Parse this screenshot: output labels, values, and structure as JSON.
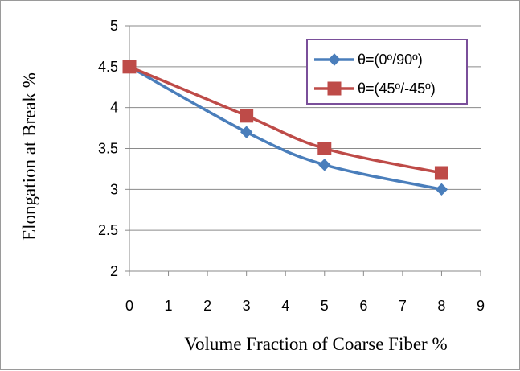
{
  "chart_data": {
    "type": "line",
    "title": "",
    "xlabel": "Volume Fraction of  Coarse Fiber %",
    "ylabel": "Elongation at Break %",
    "xlim": [
      0,
      9
    ],
    "ylim": [
      2,
      5
    ],
    "x_ticks": [
      "0",
      "1",
      "2",
      "3",
      "4",
      "5",
      "6",
      "7",
      "8",
      "9"
    ],
    "y_ticks": [
      "2",
      "2.5",
      "3",
      "3.5",
      "4",
      "4.5",
      "5"
    ],
    "grid": "horizontal",
    "legend_position": "top-right",
    "series": [
      {
        "name": "θ=(0º/90º)",
        "marker": "diamond",
        "color": "#4A7EBB",
        "x": [
          0,
          3,
          5,
          8
        ],
        "y": [
          4.5,
          3.7,
          3.3,
          3.0
        ]
      },
      {
        "name": "θ=(45º/-45º)",
        "marker": "square",
        "color": "#BE4B48",
        "x": [
          0,
          3,
          5,
          8
        ],
        "y": [
          4.5,
          3.9,
          3.5,
          3.2
        ]
      }
    ]
  }
}
